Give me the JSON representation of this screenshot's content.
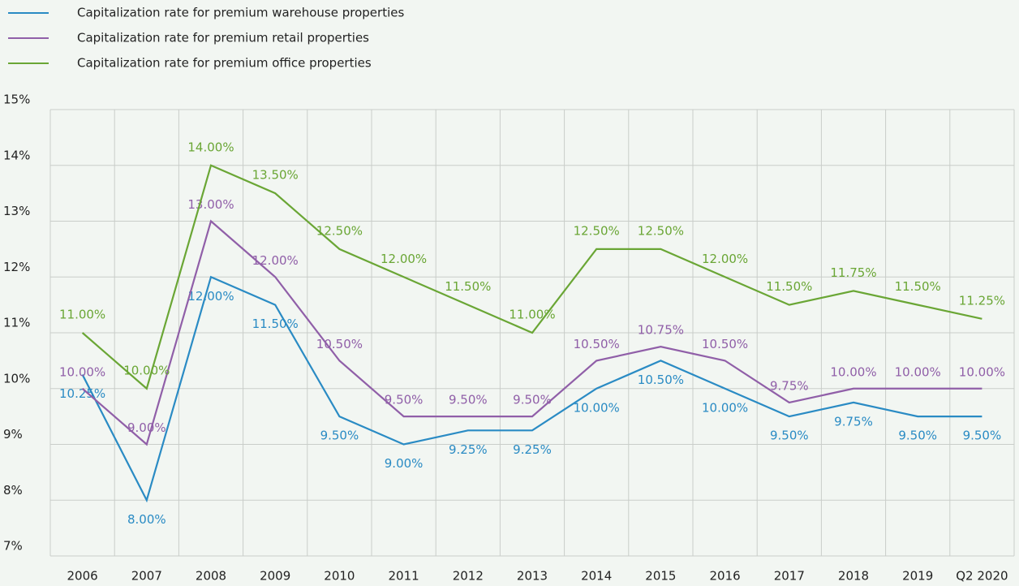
{
  "chart_data": {
    "type": "line",
    "categories": [
      "2006",
      "2007",
      "2008",
      "2009",
      "2010",
      "2011",
      "2012",
      "2013",
      "2014",
      "2015",
      "2016",
      "2017",
      "2018",
      "2019",
      "Q2 2020"
    ],
    "series": [
      {
        "name": "Capitalization rate for premium warehouse properties",
        "color": "#2a8bc4",
        "values": [
          10.25,
          8,
          12,
          11.5,
          9.5,
          9,
          9.25,
          9.25,
          10,
          10.5,
          10,
          9.5,
          9.75,
          9.5,
          9.5
        ],
        "value_labels": [
          "10.25%",
          "8.00%",
          "12.00%",
          "11.50%",
          "9.50%",
          "9.00%",
          "9.25%",
          "9.25%",
          "10.00%",
          "10.50%",
          "10.00%",
          "9.50%",
          "9.75%",
          "9.50%",
          "9.50%"
        ]
      },
      {
        "name": "Capitalization rate for premium retail properties",
        "color": "#905fa8",
        "values": [
          10,
          9,
          13,
          12,
          10.5,
          9.5,
          9.5,
          9.5,
          10.5,
          10.75,
          10.5,
          9.75,
          10,
          10,
          10
        ],
        "value_labels": [
          "10.00%",
          "9.00%",
          "13.00%",
          "12.00%",
          "10.50%",
          "9.50%",
          "9.50%",
          "9.50%",
          "10.50%",
          "10.75%",
          "10.50%",
          "9.75%",
          "10.00%",
          "10.00%",
          "10.00%"
        ]
      },
      {
        "name": "Capitalization rate for premium office properties",
        "color": "#6aa635",
        "values": [
          11,
          10,
          14,
          13.5,
          12.5,
          12,
          11.5,
          11,
          12.5,
          12.5,
          12,
          11.5,
          11.75,
          11.5,
          11.25
        ],
        "value_labels": [
          "11.00%",
          "10.00%",
          "14.00%",
          "13.50%",
          "12.50%",
          "12.00%",
          "11.50%",
          "11.00%",
          "12.50%",
          "12.50%",
          "12.00%",
          "11.50%",
          "11.75%",
          "11.50%",
          "11.25%"
        ]
      }
    ],
    "ylim": [
      7,
      15
    ],
    "yticks": [
      {
        "value": 7,
        "label": "7%"
      },
      {
        "value": 8,
        "label": "8%"
      },
      {
        "value": 9,
        "label": "9%"
      },
      {
        "value": 10,
        "label": "10%"
      },
      {
        "value": 11,
        "label": "11%"
      },
      {
        "value": 12,
        "label": "12%"
      },
      {
        "value": 13,
        "label": "13%"
      },
      {
        "value": 14,
        "label": "14%"
      },
      {
        "value": 15,
        "label": "15%"
      }
    ],
    "grid": true,
    "legend": "top-left"
  }
}
